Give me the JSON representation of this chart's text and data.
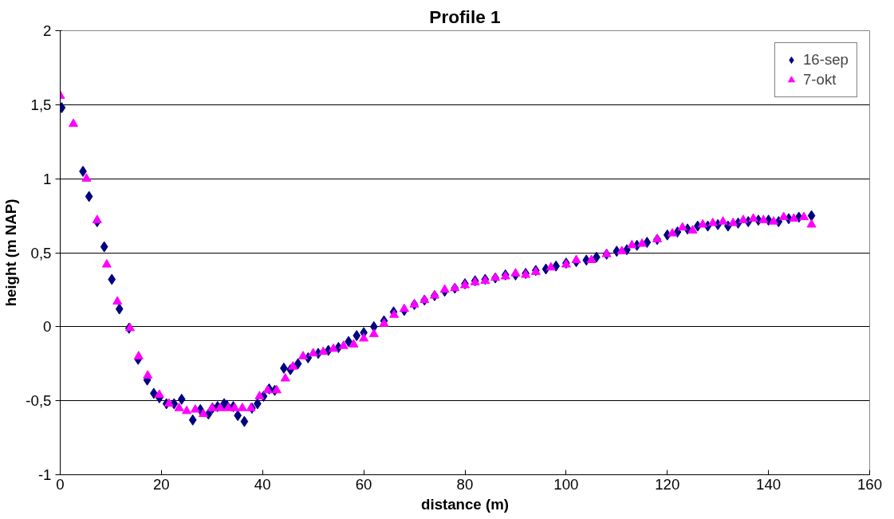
{
  "chart_data": {
    "type": "scatter",
    "title": "Profile 1",
    "xlabel": "distance (m)",
    "ylabel": "height (m NAP)",
    "xlim": [
      0,
      160
    ],
    "xticks": [
      0,
      20,
      40,
      60,
      80,
      100,
      120,
      140,
      160
    ],
    "ylim": [
      -1,
      2
    ],
    "yticks": [
      {
        "value": -1,
        "label": "-1"
      },
      {
        "value": -0.5,
        "label": "-0,5"
      },
      {
        "value": 0,
        "label": "0"
      },
      {
        "value": 0.5,
        "label": "0,5"
      },
      {
        "value": 1,
        "label": "1"
      },
      {
        "value": 1.5,
        "label": "1,5"
      },
      {
        "value": 2,
        "label": "2"
      }
    ],
    "grid": "y",
    "legend": "top right",
    "series": [
      {
        "name": "16-sep",
        "color": "#000080",
        "marker": "diamond",
        "x": [
          0.3,
          4.5,
          5.7,
          7.3,
          8.7,
          10.2,
          11.7,
          13.6,
          15.4,
          17.2,
          18.5,
          19.6,
          21,
          22.5,
          24,
          26.2,
          27.7,
          29.3,
          30.1,
          31.1,
          32.4,
          32.9,
          34.2,
          35.1,
          36.4,
          37.9,
          39,
          40.2,
          41.3,
          42.4,
          44.2,
          45.5,
          47,
          49,
          51,
          53,
          55,
          57,
          58.6,
          60,
          62,
          64,
          65.9,
          68,
          70,
          72,
          74,
          76,
          78,
          80,
          82,
          84,
          86,
          88,
          90,
          92,
          94,
          96,
          98,
          100,
          102,
          104,
          106,
          108,
          110,
          112,
          114,
          116,
          118,
          120,
          122,
          124,
          126,
          128,
          130,
          132,
          134,
          136,
          138,
          140,
          142,
          144,
          146,
          148.5
        ],
        "values": [
          1.48,
          1.05,
          0.88,
          0.71,
          0.54,
          0.32,
          0.12,
          -0.01,
          -0.22,
          -0.36,
          -0.45,
          -0.48,
          -0.52,
          -0.52,
          -0.49,
          -0.63,
          -0.56,
          -0.59,
          -0.55,
          -0.54,
          -0.52,
          -0.53,
          -0.54,
          -0.6,
          -0.64,
          -0.55,
          -0.52,
          -0.47,
          -0.42,
          -0.43,
          -0.28,
          -0.29,
          -0.25,
          -0.21,
          -0.18,
          -0.16,
          -0.14,
          -0.1,
          -0.06,
          -0.04,
          0.0,
          0.04,
          0.1,
          0.11,
          0.15,
          0.18,
          0.21,
          0.24,
          0.26,
          0.29,
          0.31,
          0.32,
          0.33,
          0.35,
          0.35,
          0.36,
          0.38,
          0.39,
          0.41,
          0.43,
          0.44,
          0.45,
          0.47,
          0.49,
          0.51,
          0.52,
          0.55,
          0.57,
          0.59,
          0.62,
          0.64,
          0.66,
          0.68,
          0.68,
          0.69,
          0.68,
          0.7,
          0.71,
          0.72,
          0.72,
          0.71,
          0.73,
          0.74,
          0.75
        ]
      },
      {
        "name": "7-okt",
        "color": "#ff00ff",
        "marker": "triangle",
        "x": [
          0,
          2.6,
          5.2,
          7.3,
          9.2,
          11.3,
          13.8,
          15.5,
          17.3,
          19.6,
          21.5,
          23.5,
          25,
          26.7,
          28.3,
          30,
          31.6,
          33.2,
          34.5,
          36,
          37.7,
          39.4,
          41,
          42.8,
          44.5,
          46,
          48,
          50,
          52,
          54,
          56,
          58,
          60,
          62,
          64,
          66,
          68,
          70,
          72,
          74,
          76,
          78,
          80,
          82,
          84,
          86,
          88,
          90,
          92,
          94,
          97,
          100,
          102,
          105,
          108,
          111,
          113,
          115,
          118,
          121,
          123,
          125,
          127,
          129,
          131,
          133,
          135,
          137,
          139,
          141,
          143,
          145,
          147,
          148.5
        ],
        "values": [
          1.56,
          1.37,
          1.0,
          0.72,
          0.42,
          0.17,
          -0.01,
          -0.2,
          -0.33,
          -0.46,
          -0.52,
          -0.55,
          -0.57,
          -0.56,
          -0.59,
          -0.55,
          -0.55,
          -0.55,
          -0.55,
          -0.55,
          -0.55,
          -0.47,
          -0.43,
          -0.43,
          -0.35,
          -0.27,
          -0.2,
          -0.18,
          -0.17,
          -0.15,
          -0.13,
          -0.12,
          -0.08,
          -0.05,
          0.02,
          0.08,
          0.12,
          0.15,
          0.18,
          0.21,
          0.25,
          0.26,
          0.28,
          0.3,
          0.31,
          0.33,
          0.34,
          0.36,
          0.35,
          0.37,
          0.4,
          0.42,
          0.45,
          0.45,
          0.49,
          0.51,
          0.55,
          0.56,
          0.59,
          0.63,
          0.67,
          0.65,
          0.69,
          0.7,
          0.71,
          0.7,
          0.72,
          0.73,
          0.72,
          0.71,
          0.74,
          0.73,
          0.74,
          0.69
        ]
      }
    ]
  }
}
